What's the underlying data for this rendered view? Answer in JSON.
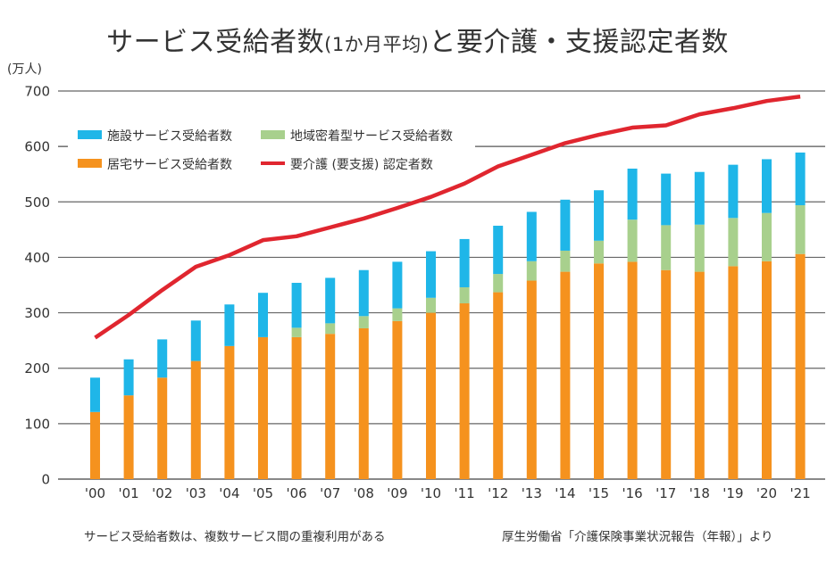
{
  "chart_data": {
    "type": "bar",
    "stacked": true,
    "title_main": "サービス受給者数",
    "title_paren": "(1か月平均)",
    "title_tail": "と要介護・支援認定者数",
    "ylabel": "(万人)",
    "xlabel": "",
    "ylim": [
      0,
      700
    ],
    "yticks": [
      0,
      100,
      200,
      300,
      400,
      500,
      600,
      700
    ],
    "grid": true,
    "legend_position": "top-left",
    "categories": [
      "'00",
      "'01",
      "'02",
      "'03",
      "'04",
      "'05",
      "'06",
      "'07",
      "'08",
      "'09",
      "'10",
      "'11",
      "'12",
      "'13",
      "'14",
      "'15",
      "'16",
      "'17",
      "'18",
      "'19",
      "'20",
      "'21"
    ],
    "series": [
      {
        "name": "居宅サービス受給者数",
        "kind": "bar",
        "color": "#f5921e",
        "values": [
          121,
          151,
          183,
          213,
          240,
          256,
          256,
          262,
          272,
          285,
          300,
          317,
          337,
          358,
          374,
          389,
          392,
          377,
          374,
          384,
          393,
          406
        ]
      },
      {
        "name": "地域密着型サービス受給者数",
        "kind": "bar",
        "color": "#a8d08d",
        "values": [
          0,
          0,
          0,
          0,
          0,
          0,
          17,
          19,
          22,
          23,
          27,
          29,
          33,
          35,
          38,
          41,
          76,
          81,
          85,
          87,
          87,
          88
        ]
      },
      {
        "name": "施設サービス受給者数",
        "kind": "bar",
        "color": "#1fb6e8",
        "values": [
          62,
          65,
          69,
          73,
          75,
          80,
          81,
          82,
          83,
          84,
          84,
          87,
          87,
          89,
          92,
          91,
          92,
          93,
          95,
          96,
          97,
          95
        ]
      },
      {
        "name": "要介護（要支援）認定者数",
        "kind": "line",
        "color": "#e0262f",
        "values": [
          255,
          296,
          341,
          383,
          404,
          431,
          438,
          454,
          470,
          489,
          509,
          533,
          564,
          585,
          606,
          621,
          634,
          638,
          658,
          669,
          682,
          690
        ]
      }
    ],
    "legend": [
      {
        "label": "施設サービス受給者数",
        "color": "#1fb6e8",
        "kind": "bar"
      },
      {
        "label": "地域密着型サービス受給者数",
        "color": "#a8d08d",
        "kind": "bar"
      },
      {
        "label": "居宅サービス受給者数",
        "color": "#f5921e",
        "kind": "bar"
      },
      {
        "label": "要介護 (要支援) 認定者数",
        "color": "#e0262f",
        "kind": "line"
      }
    ],
    "annotations": {
      "note": "サービス受給者数は、複数サービス間の重複利用がある",
      "source": "厚生労働省「介護保険事業状況報告（年報）」より"
    }
  }
}
